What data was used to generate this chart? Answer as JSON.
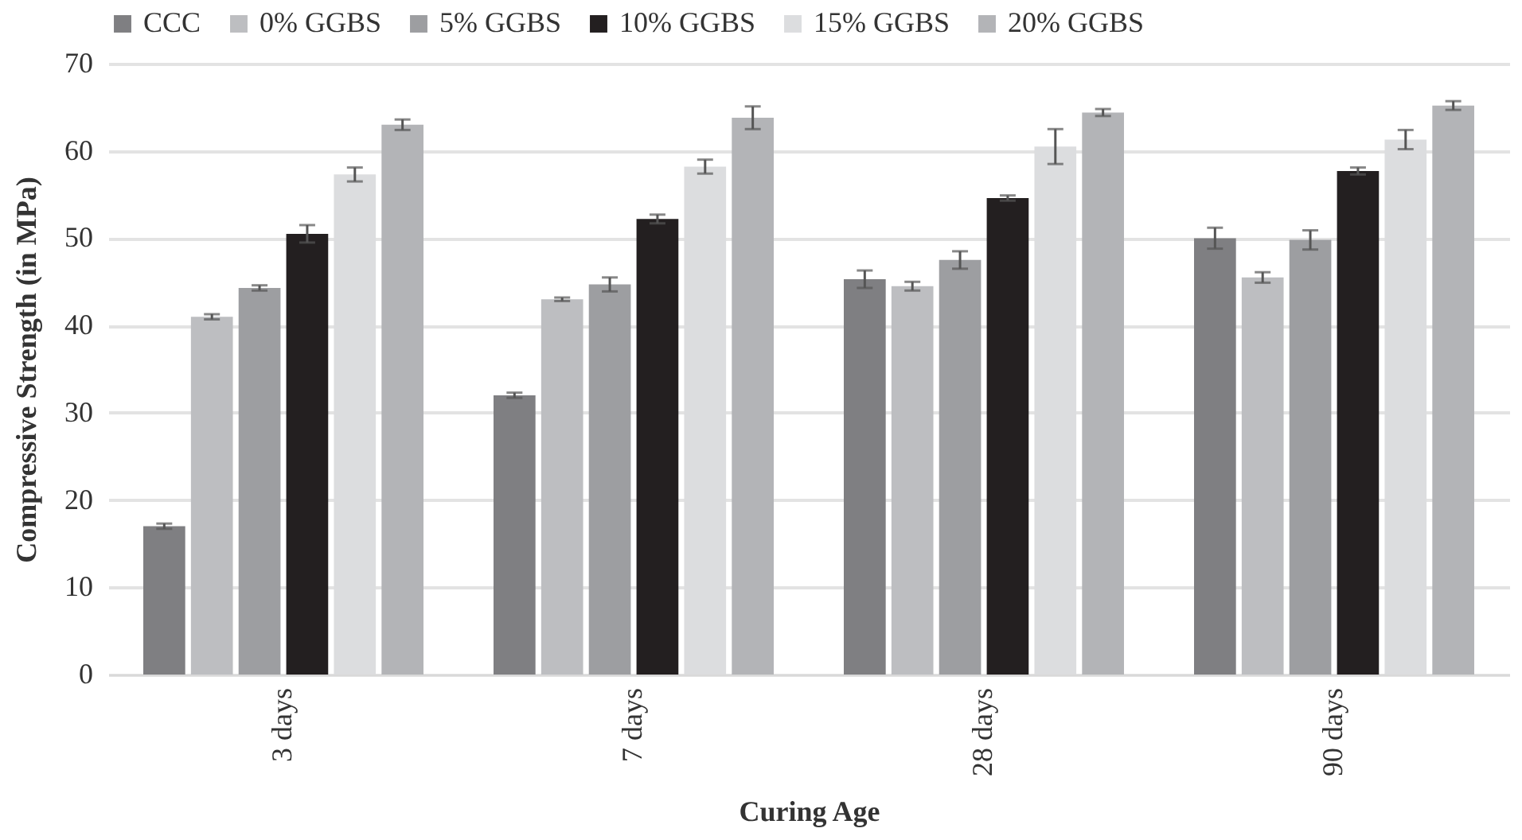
{
  "chart_data": {
    "type": "bar",
    "xlabel": "Curing Age",
    "ylabel": "Compressive Strength (in MPa)",
    "categories": [
      "3 days",
      "7 days",
      "28 days",
      "90 days"
    ],
    "series": [
      {
        "name": "CCC",
        "color": "#7f7f82",
        "values": [
          17,
          32,
          45.3,
          50
        ],
        "errors": [
          0.3,
          0.3,
          1,
          1.2
        ]
      },
      {
        "name": "0% GGBS",
        "color": "#bdbec1",
        "values": [
          41,
          43,
          44.5,
          45.5
        ],
        "errors": [
          0.3,
          0.2,
          0.5,
          0.6
        ]
      },
      {
        "name": "5% GGBS",
        "color": "#9d9ea1",
        "values": [
          44.3,
          44.7,
          47.5,
          49.8
        ],
        "errors": [
          0.3,
          0.8,
          1,
          1.1
        ]
      },
      {
        "name": "10% GGBS",
        "color": "#231f20",
        "values": [
          50.5,
          52.2,
          54.6,
          57.7
        ],
        "errors": [
          1,
          0.5,
          0.3,
          0.4
        ]
      },
      {
        "name": "15% GGBS",
        "color": "#dcdddf",
        "values": [
          57.3,
          58.2,
          60.5,
          61.3
        ],
        "errors": [
          0.8,
          0.8,
          2,
          1.1
        ]
      },
      {
        "name": "20% GGBS",
        "color": "#b3b4b7",
        "values": [
          63,
          63.8,
          64.4,
          65.2
        ],
        "errors": [
          0.6,
          1.3,
          0.4,
          0.5
        ]
      }
    ],
    "ylim": [
      0,
      70
    ],
    "yticks": [
      0,
      10,
      20,
      30,
      40,
      50,
      60,
      70
    ],
    "grid": "y",
    "legend": "top"
  }
}
